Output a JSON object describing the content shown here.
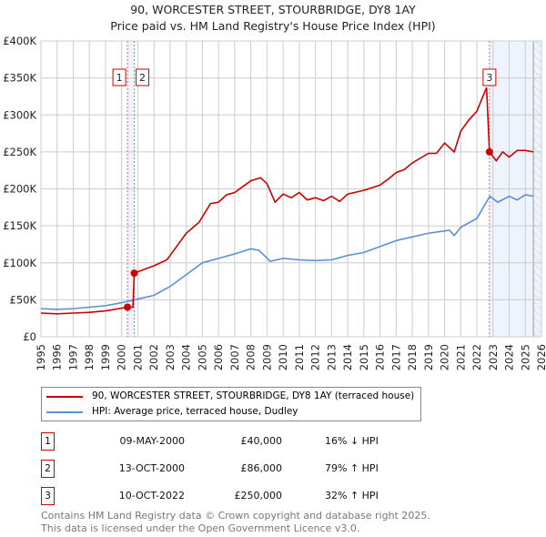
{
  "chart_data": {
    "type": "line",
    "title": "90, WORCESTER STREET, STOURBRIDGE, DY8 1AY",
    "subtitle": "Price paid vs. HM Land Registry's House Price Index (HPI)",
    "xlim": [
      1995,
      2026
    ],
    "ylim": [
      0,
      400000
    ],
    "y_ticks": [
      {
        "v": 0,
        "l": "£0"
      },
      {
        "v": 50000,
        "l": "£50K"
      },
      {
        "v": 100000,
        "l": "£100K"
      },
      {
        "v": 150000,
        "l": "£150K"
      },
      {
        "v": 200000,
        "l": "£200K"
      },
      {
        "v": 250000,
        "l": "£250K"
      },
      {
        "v": 300000,
        "l": "£300K"
      },
      {
        "v": 350000,
        "l": "£350K"
      },
      {
        "v": 400000,
        "l": "£400K"
      }
    ],
    "x_ticks": [
      "1995",
      "1996",
      "1997",
      "1998",
      "1999",
      "2000",
      "2001",
      "2002",
      "2003",
      "2004",
      "2005",
      "2006",
      "2007",
      "2008",
      "2009",
      "2010",
      "2011",
      "2012",
      "2013",
      "2014",
      "2015",
      "2016",
      "2017",
      "2018",
      "2019",
      "2020",
      "2021",
      "2022",
      "2023",
      "2024",
      "2025",
      "2026"
    ],
    "grid": true,
    "series": [
      {
        "name": "90, WORCESTER STREET, STOURBRIDGE, DY8 1AY (terraced house)",
        "color": "#cc0000",
        "points": [
          [
            1995,
            32000
          ],
          [
            1996,
            31000
          ],
          [
            1997,
            32000
          ],
          [
            1998,
            33000
          ],
          [
            1999,
            35000
          ],
          [
            2000.36,
            40000
          ],
          [
            2000.7,
            40000
          ],
          [
            2000.78,
            86000
          ],
          [
            2001.5,
            92000
          ],
          [
            2002,
            96000
          ],
          [
            2002.8,
            104000
          ],
          [
            2003.5,
            125000
          ],
          [
            2004,
            140000
          ],
          [
            2004.8,
            155000
          ],
          [
            2005.5,
            180000
          ],
          [
            2006,
            182000
          ],
          [
            2006.5,
            192000
          ],
          [
            2007,
            195000
          ],
          [
            2007.5,
            203000
          ],
          [
            2008,
            211000
          ],
          [
            2008.6,
            215000
          ],
          [
            2009,
            207000
          ],
          [
            2009.5,
            182000
          ],
          [
            2010,
            193000
          ],
          [
            2010.5,
            188000
          ],
          [
            2011,
            195000
          ],
          [
            2011.5,
            185000
          ],
          [
            2012,
            188000
          ],
          [
            2012.5,
            184000
          ],
          [
            2013,
            190000
          ],
          [
            2013.5,
            183000
          ],
          [
            2014,
            193000
          ],
          [
            2015,
            198000
          ],
          [
            2016,
            205000
          ],
          [
            2016.5,
            213000
          ],
          [
            2017,
            222000
          ],
          [
            2017.5,
            226000
          ],
          [
            2018,
            235000
          ],
          [
            2019,
            248000
          ],
          [
            2019.5,
            248000
          ],
          [
            2020,
            262000
          ],
          [
            2020.6,
            250000
          ],
          [
            2021,
            278000
          ],
          [
            2021.5,
            293000
          ],
          [
            2022,
            305000
          ],
          [
            2022.6,
            337000
          ],
          [
            2022.78,
            250000
          ],
          [
            2023.2,
            238000
          ],
          [
            2023.6,
            250000
          ],
          [
            2024,
            243000
          ],
          [
            2024.5,
            252000
          ],
          [
            2025,
            252000
          ],
          [
            2025.5,
            250000
          ]
        ]
      },
      {
        "name": "HPI: Average price, terraced house, Dudley",
        "color": "#5b8fd4",
        "points": [
          [
            1995,
            38000
          ],
          [
            1996,
            37000
          ],
          [
            1997,
            38000
          ],
          [
            1998,
            40000
          ],
          [
            1999,
            42000
          ],
          [
            2000,
            46000
          ],
          [
            2001,
            51000
          ],
          [
            2002,
            56000
          ],
          [
            2003,
            68000
          ],
          [
            2004,
            84000
          ],
          [
            2005,
            100000
          ],
          [
            2006,
            106000
          ],
          [
            2007,
            112000
          ],
          [
            2008,
            119000
          ],
          [
            2008.5,
            117000
          ],
          [
            2009.2,
            102000
          ],
          [
            2010,
            106000
          ],
          [
            2011,
            104000
          ],
          [
            2012,
            103000
          ],
          [
            2013,
            104000
          ],
          [
            2014,
            110000
          ],
          [
            2015,
            114000
          ],
          [
            2016,
            122000
          ],
          [
            2017,
            130000
          ],
          [
            2018,
            135000
          ],
          [
            2019,
            140000
          ],
          [
            2020.3,
            144000
          ],
          [
            2020.6,
            137000
          ],
          [
            2021,
            148000
          ],
          [
            2022,
            160000
          ],
          [
            2022.8,
            190000
          ],
          [
            2023.3,
            182000
          ],
          [
            2024,
            190000
          ],
          [
            2024.5,
            185000
          ],
          [
            2025,
            192000
          ],
          [
            2025.5,
            190000
          ]
        ]
      }
    ],
    "sales": [
      {
        "id": "1",
        "x": 2000.36,
        "y": 40000
      },
      {
        "id": "2",
        "x": 2000.78,
        "y": 86000
      },
      {
        "id": "3",
        "x": 2022.78,
        "y": 250000
      }
    ],
    "legend_placement": "below"
  },
  "table": [
    {
      "num": "1",
      "date": "09-MAY-2000",
      "price": "£40,000",
      "hpi": "16% ↓ HPI"
    },
    {
      "num": "2",
      "date": "13-OCT-2000",
      "price": "£86,000",
      "hpi": "79% ↑ HPI"
    },
    {
      "num": "3",
      "date": "10-OCT-2022",
      "price": "£250,000",
      "hpi": "32% ↑ HPI"
    }
  ],
  "footer": {
    "line1": "Contains HM Land Registry data © Crown copyright and database right 2025.",
    "line2": "This data is licensed under the Open Government Licence v3.0."
  }
}
